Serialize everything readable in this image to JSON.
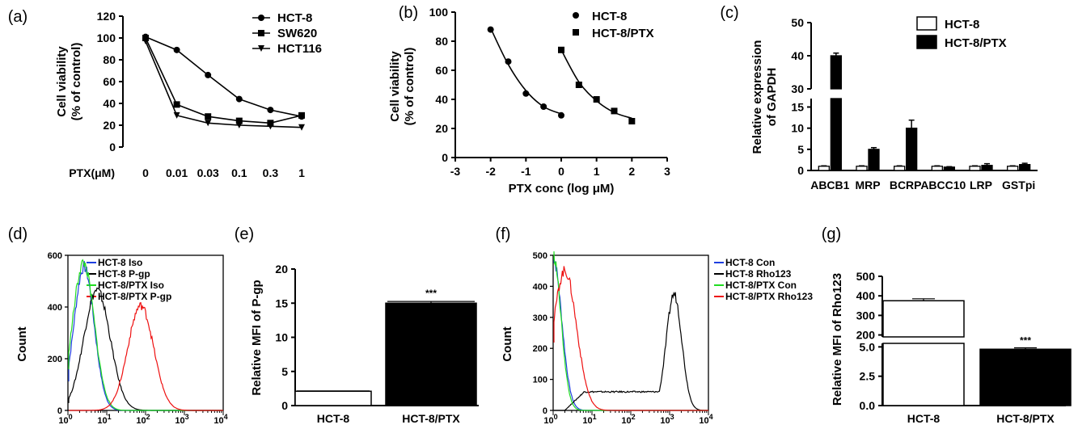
{
  "chart_data": [
    {
      "id": "a",
      "panel_label": "(a)",
      "type": "line",
      "xlabel": "PTX(μM)",
      "ylabel": [
        "Cell viability",
        "(% of control)"
      ],
      "categories": [
        "0",
        "0.01",
        "0.03",
        "0.1",
        "0.3",
        "1"
      ],
      "ylim": [
        0,
        120
      ],
      "yticks": [
        0,
        20,
        40,
        60,
        80,
        100,
        120
      ],
      "legend_position": "top-right",
      "series": [
        {
          "name": "HCT-8",
          "marker": "circle",
          "values": [
            101,
            89,
            66,
            44,
            34,
            28
          ]
        },
        {
          "name": "SW620",
          "marker": "square",
          "values": [
            100,
            39,
            28,
            24,
            22,
            29
          ]
        },
        {
          "name": "HCT116",
          "marker": "triangle-down",
          "values": [
            97,
            29,
            22,
            20,
            19,
            18
          ]
        }
      ]
    },
    {
      "id": "b",
      "panel_label": "(b)",
      "type": "scatter",
      "xlabel": "PTX conc (log μM)",
      "ylabel": [
        "Cell viability",
        "(% of control)"
      ],
      "xlim": [
        -3,
        3
      ],
      "xticks": [
        -3,
        -2,
        -1,
        0,
        1,
        2,
        3
      ],
      "ylim": [
        0,
        100
      ],
      "yticks": [
        0,
        20,
        40,
        60,
        80,
        100
      ],
      "legend_position": "top-right",
      "series": [
        {
          "name": "HCT-8",
          "marker": "circle",
          "x": [
            -2,
            -1.5,
            -1,
            -0.5,
            0
          ],
          "y": [
            88,
            66,
            44,
            35,
            29
          ],
          "fit_x": [
            -2,
            -1.5,
            -1,
            -0.5,
            0
          ],
          "fit_y": [
            89,
            64,
            46,
            35,
            30
          ]
        },
        {
          "name": "HCT-8/PTX",
          "marker": "square",
          "x": [
            0,
            0.5,
            1,
            1.5,
            2
          ],
          "y": [
            74,
            50,
            40,
            32,
            25
          ],
          "fit_x": [
            0,
            0.5,
            1,
            1.5,
            2
          ],
          "fit_y": [
            74,
            52,
            39,
            31,
            27
          ]
        }
      ]
    },
    {
      "id": "c",
      "panel_label": "(c)",
      "type": "bar",
      "ylabel": [
        "Relative expression",
        "of GAPDH"
      ],
      "categories": [
        "ABCB1",
        "MRP",
        "BCRP",
        "ABCC10",
        "LRP",
        "GSTpi"
      ],
      "ylim": [
        0,
        50
      ],
      "axis_break": [
        17,
        30
      ],
      "yticks": [
        0,
        5,
        10,
        15,
        30,
        40,
        50
      ],
      "legend_position": "top-right",
      "series": [
        {
          "name": "HCT-8",
          "fill": "white",
          "values": [
            1,
            1,
            1,
            1,
            1,
            1
          ],
          "errors": [
            0.1,
            0.1,
            0.1,
            0.1,
            0.1,
            0.1
          ]
        },
        {
          "name": "HCT-8/PTX",
          "fill": "black",
          "values": [
            40,
            5,
            10,
            0.8,
            1.2,
            1.4
          ],
          "errors": [
            0.8,
            0.4,
            1.9,
            0.1,
            0.4,
            0.3
          ]
        }
      ]
    },
    {
      "id": "d",
      "panel_label": "(d)",
      "type": "line",
      "subtype": "flow-histogram",
      "xlabel": "",
      "ylabel": "Count",
      "xscale": "log",
      "xlim": [
        1,
        10000
      ],
      "xtick_base": "10",
      "xtick_exponents": [
        "0",
        "1",
        "2",
        "3",
        "4"
      ],
      "ylim": [
        0,
        600
      ],
      "yticks": [
        0,
        200,
        400,
        600
      ],
      "legend_position": "top-right",
      "series": [
        {
          "name": "HCT-8 Iso",
          "color": "#1f3fe0",
          "peak_x": 2.6,
          "peak_y": 555,
          "width": 0.26
        },
        {
          "name": "HCT-8 P-gp",
          "color": "#000000",
          "peak_x": 5.6,
          "peak_y": 465,
          "width": 0.34
        },
        {
          "name": "HCT-8/PTX Iso",
          "color": "#22dd22",
          "peak_x": 2.5,
          "peak_y": 570,
          "width": 0.28
        },
        {
          "name": "HCT-8/PTX P-gp",
          "color": "#ee1111",
          "peak_x": 75,
          "peak_y": 405,
          "width": 0.33
        }
      ]
    },
    {
      "id": "e",
      "panel_label": "(e)",
      "type": "bar",
      "ylabel": "Relative MFI of P-gp",
      "categories": [
        "HCT-8",
        "HCT-8/PTX"
      ],
      "ylim": [
        0,
        20
      ],
      "yticks": [
        0,
        5,
        10,
        15,
        20
      ],
      "series": [
        {
          "name": "",
          "fills": [
            "white",
            "black"
          ],
          "values": [
            2.1,
            15.0
          ],
          "errors": [
            0.05,
            0.25
          ]
        }
      ],
      "annotations": [
        {
          "category": "HCT-8/PTX",
          "text": "***"
        }
      ]
    },
    {
      "id": "f",
      "panel_label": "(f)",
      "type": "line",
      "subtype": "flow-histogram",
      "xlabel": "",
      "ylabel": "Count",
      "xscale": "log",
      "xlim": [
        1,
        10000
      ],
      "xtick_base": "10",
      "xtick_exponents": [
        "0",
        "1",
        "2",
        "3",
        "4"
      ],
      "ylim": [
        0,
        500
      ],
      "yticks": [
        0,
        100,
        200,
        300,
        400,
        500
      ],
      "legend_position": "top-right",
      "series": [
        {
          "name": "HCT-8 Con",
          "color": "#1f3fe0",
          "peak_x": 1.0,
          "peak_y": 490,
          "width": 0.22
        },
        {
          "name": "HCT-8 Rho123",
          "color": "#000000",
          "peak_x": 1300,
          "peak_y": 375,
          "width": 0.2,
          "shoulder_y": 60
        },
        {
          "name": "HCT-8/PTX Con",
          "color": "#22dd22",
          "peak_x": 1.0,
          "peak_y": 500,
          "width": 0.2
        },
        {
          "name": "HCT-8/PTX Rho123",
          "color": "#ee1111",
          "peak_x": 2.0,
          "peak_y": 450,
          "width": 0.3
        }
      ]
    },
    {
      "id": "g",
      "panel_label": "(g)",
      "type": "bar",
      "ylabel": "Relative MFI of Rho123",
      "categories": [
        "HCT-8",
        "HCT-8/PTX"
      ],
      "ylim": [
        0,
        500
      ],
      "axis_break": [
        5.3,
        190
      ],
      "yticks": [
        0.0,
        2.5,
        5.0,
        200,
        300,
        400,
        500
      ],
      "ytick_labels": [
        "0.0",
        "2.5",
        "5.0",
        "200",
        "300",
        "400",
        "500"
      ],
      "series": [
        {
          "name": "",
          "fills": [
            "white",
            "black"
          ],
          "values": [
            375,
            4.8
          ],
          "errors": [
            10,
            0.12
          ]
        }
      ],
      "annotations": [
        {
          "category": "HCT-8/PTX",
          "text": "***"
        }
      ]
    }
  ]
}
